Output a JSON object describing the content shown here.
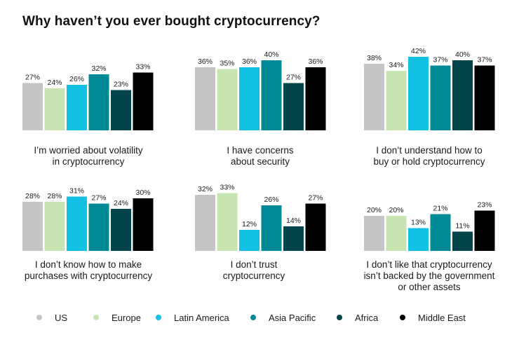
{
  "title": "Why haven’t you ever bought cryptocurrency?",
  "series": [
    {
      "name": "US",
      "color": "#c5c5c5"
    },
    {
      "name": "Europe",
      "color": "#c9e4b3"
    },
    {
      "name": "Latin America",
      "color": "#13c1e4"
    },
    {
      "name": "Asia Pacific",
      "color": "#008a96"
    },
    {
      "name": "Africa",
      "color": "#04454c"
    },
    {
      "name": "Middle East",
      "color": "#000000"
    }
  ],
  "chart_data": [
    {
      "type": "bar",
      "label_lines": [
        "I’m worried about volatility",
        "in cryptocurrency"
      ],
      "categories": [
        "US",
        "Europe",
        "Latin America",
        "Asia Pacific",
        "Africa",
        "Middle East"
      ],
      "values": [
        27,
        24,
        26,
        32,
        23,
        33
      ],
      "value_labels": [
        "27%",
        "24%",
        "26%",
        "32%",
        "23%",
        "33%"
      ],
      "unit": "%"
    },
    {
      "type": "bar",
      "label_lines": [
        "I have concerns",
        "about security"
      ],
      "categories": [
        "US",
        "Europe",
        "Latin America",
        "Asia Pacific",
        "Africa",
        "Middle East"
      ],
      "values": [
        36,
        35,
        36,
        40,
        27,
        36
      ],
      "value_labels": [
        "36%",
        "35%",
        "36%",
        "40%",
        "27%",
        "36%"
      ],
      "unit": "%"
    },
    {
      "type": "bar",
      "label_lines": [
        "I don’t understand how to",
        "buy or hold cryptocurrency"
      ],
      "categories": [
        "US",
        "Europe",
        "Latin America",
        "Asia Pacific",
        "Africa",
        "Middle East"
      ],
      "values": [
        38,
        34,
        42,
        37,
        40,
        37
      ],
      "value_labels": [
        "38%",
        "34%",
        "42%",
        "37%",
        "40%",
        "37%"
      ],
      "unit": "%"
    },
    {
      "type": "bar",
      "label_lines": [
        "I don’t know how to make",
        "purchases with cryptocurrency"
      ],
      "categories": [
        "US",
        "Europe",
        "Latin America",
        "Asia Pacific",
        "Africa",
        "Middle East"
      ],
      "values": [
        28,
        28,
        31,
        27,
        24,
        30
      ],
      "value_labels": [
        "28%",
        "28%",
        "31%",
        "27%",
        "24%",
        "30%"
      ],
      "unit": "%"
    },
    {
      "type": "bar",
      "label_lines": [
        "I don’t trust",
        "cryptocurrency"
      ],
      "categories": [
        "US",
        "Europe",
        "Latin America",
        "Asia Pacific",
        "Africa",
        "Middle East"
      ],
      "values": [
        32,
        33,
        12,
        26,
        14,
        27
      ],
      "value_labels": [
        "32%",
        "33%",
        "12%",
        "26%",
        "14%",
        "27%"
      ],
      "unit": "%"
    },
    {
      "type": "bar",
      "label_lines": [
        "I don’t like that cryptocurrency",
        "isn’t backed by the government",
        "or other assets"
      ],
      "categories": [
        "US",
        "Europe",
        "Latin America",
        "Asia Pacific",
        "Africa",
        "Middle East"
      ],
      "values": [
        20,
        20,
        13,
        21,
        11,
        23
      ],
      "value_labels": [
        "20%",
        "20%",
        "13%",
        "21%",
        "11%",
        "23%"
      ],
      "unit": "%"
    }
  ]
}
